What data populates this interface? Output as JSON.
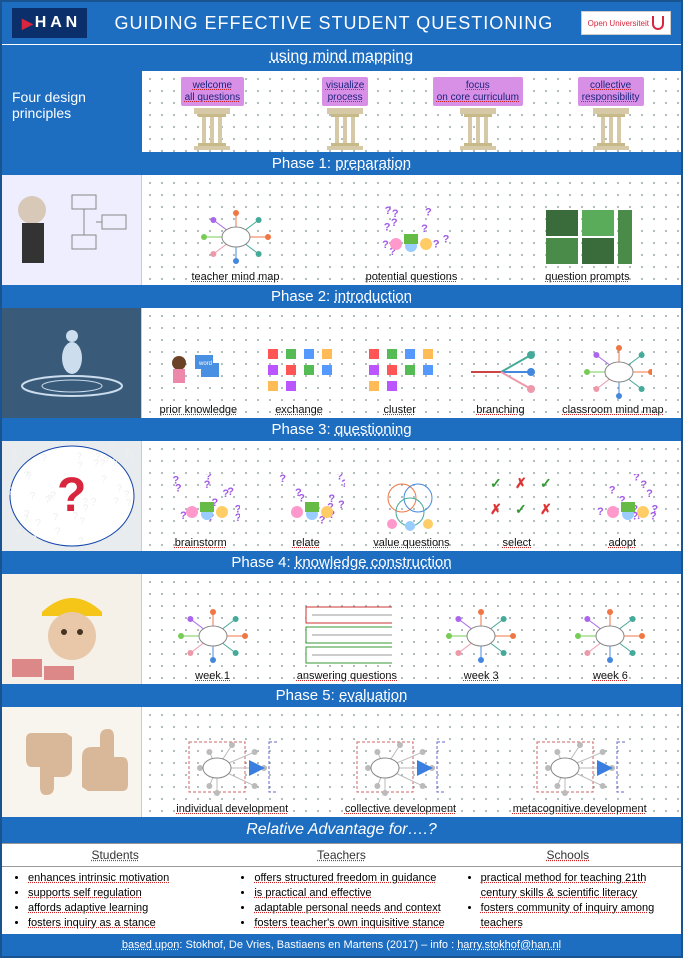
{
  "colors": {
    "brand_blue": "#1d6dc1",
    "dark_blue": "#0a2f6b",
    "red": "#d7263d",
    "pillar_purple": "#d890e6",
    "text_navy": "#1a237e"
  },
  "header": {
    "logo_text": "H A N",
    "title": "GUIDING EFFECTIVE STUDENT QUESTIONING",
    "uni_label": "Open Universiteit"
  },
  "subtitle": "using mind mapping",
  "principles": {
    "label": "Four design principles",
    "pillars": [
      "welcome all questions",
      "visualize process",
      "focus on core curriculum",
      "collective responsibility"
    ]
  },
  "phases": [
    {
      "name": "Phase 1:",
      "keyword": "preparation",
      "side_img": "teacher-diagram",
      "items": [
        "teacher mind map",
        "potential questions",
        "question prompts"
      ]
    },
    {
      "name": "Phase 2:",
      "keyword": "introduction",
      "side_img": "water-drop",
      "items": [
        "prior knowledge",
        "exchange",
        "cluster",
        "branching",
        "classroom mind map"
      ]
    },
    {
      "name": "Phase 3:",
      "keyword": "questioning",
      "side_img": "question-marks",
      "items": [
        "brainstorm",
        "relate",
        "value questions",
        "select",
        "adopt"
      ]
    },
    {
      "name": "Phase 4:",
      "keyword": "knowledge construction",
      "side_img": "child-hardhat",
      "items": [
        "week 1",
        "answering questions",
        "week 3",
        "week 6"
      ]
    },
    {
      "name": "Phase 5:",
      "keyword": "evaluation",
      "side_img": "thumbs",
      "items": [
        "individual development",
        "collective development",
        "metacognitive development"
      ]
    }
  ],
  "advantage": {
    "title": "Relative Advantage for….?",
    "columns": [
      {
        "head": "Students",
        "points": [
          "enhances intrinsic motivation",
          "supports self regulation",
          "affords adaptive learning",
          "fosters inquiry as a stance"
        ]
      },
      {
        "head": "Teachers",
        "points": [
          "offers structured freedom in guidance",
          "is practical and effective",
          "adaptable personal needs and context",
          "fosters teacher's own inquisitive stance"
        ]
      },
      {
        "head": "Schools",
        "points": [
          "practical method for teaching 21th century skills & scientific literacy",
          "fosters community of inquiry among teachers"
        ]
      }
    ]
  },
  "credit": {
    "prefix": "based upon",
    "text": ": Stokhof, De Vries, Bastiaens en Martens (2017) – info : ",
    "email": "harry.stokhof@han.nl"
  }
}
